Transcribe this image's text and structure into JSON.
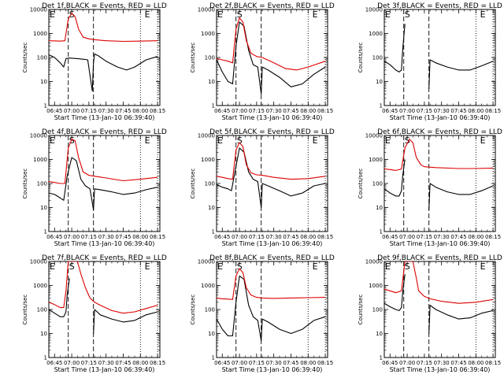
{
  "chart_data": [
    {
      "type": "line",
      "title": "Det 1f,BLACK = Events, RED = LLD",
      "xlabel": "Start Time (13-Jan-10 06:39:40)",
      "ylabel": "Counts/sec",
      "yscale": "log",
      "ylim": [
        1,
        10000
      ],
      "xlim": [
        "06:40",
        "08:17"
      ],
      "xticks": [
        "06:45",
        "07:00",
        "07:15",
        "07:30",
        "07:45",
        "08:00",
        "08:15"
      ],
      "yticks": [
        "1",
        "10",
        "100",
        "1000",
        "10000"
      ],
      "markers": [
        "E",
        "S",
        "E"
      ],
      "series": [
        {
          "name": "Events",
          "color": "#000000",
          "x": [
            "06:40",
            "06:45",
            "06:50",
            "06:53",
            "06:55",
            "06:58",
            "07:05",
            "07:10",
            "07:14",
            "07:18",
            "07:19",
            "07:20",
            "07:23",
            "07:30",
            "07:40",
            "07:48",
            "07:55",
            "08:05",
            "08:15"
          ],
          "y": [
            130,
            100,
            60,
            40,
            90,
            95,
            90,
            85,
            80,
            4,
            60,
            140,
            120,
            70,
            40,
            30,
            40,
            80,
            110
          ]
        },
        {
          "name": "LLD",
          "color": "#dd0000",
          "x": [
            "06:40",
            "06:50",
            "06:54",
            "06:57",
            "07:00",
            "07:03",
            "07:06",
            "07:10",
            "07:15",
            "07:20",
            "07:30",
            "07:45",
            "08:00",
            "08:15"
          ],
          "y": [
            500,
            480,
            500,
            4000,
            7000,
            5000,
            1500,
            700,
            600,
            550,
            500,
            470,
            480,
            500
          ]
        }
      ]
    },
    {
      "type": "line",
      "title": "Det 2f,BLACK = Events, RED = LLD",
      "xlabel": "Start Time (13-Jan-10 06:39:40)",
      "ylabel": "Counts/sec",
      "yscale": "log",
      "ylim": [
        1,
        10000
      ],
      "xlim": [
        "06:40",
        "08:17"
      ],
      "xticks": [
        "06:45",
        "07:00",
        "07:15",
        "07:30",
        "07:45",
        "08:00",
        "08:15"
      ],
      "yticks": [
        "1",
        "10",
        "100",
        "1000",
        "10000"
      ],
      "markers": [
        "E",
        "S",
        "E"
      ],
      "series": [
        {
          "name": "Events",
          "color": "#000000",
          "x": [
            "06:40",
            "06:45",
            "06:50",
            "06:54",
            "06:57",
            "07:00",
            "07:04",
            "07:08",
            "07:12",
            "07:16",
            "07:19",
            "07:20",
            "07:25",
            "07:35",
            "07:45",
            "07:55",
            "08:05",
            "08:15"
          ],
          "y": [
            80,
            25,
            10,
            8,
            300,
            3000,
            2000,
            200,
            50,
            40,
            3,
            40,
            30,
            15,
            6,
            8,
            20,
            40
          ]
        },
        {
          "name": "LLD",
          "color": "#dd0000",
          "x": [
            "06:40",
            "06:45",
            "06:50",
            "06:54",
            "06:57",
            "07:00",
            "07:03",
            "07:06",
            "07:10",
            "07:15",
            "07:20",
            "07:30",
            "07:40",
            "07:50",
            "08:00",
            "08:15"
          ],
          "y": [
            90,
            80,
            70,
            60,
            1500,
            4500,
            3000,
            500,
            150,
            110,
            100,
            60,
            35,
            30,
            40,
            70
          ]
        }
      ]
    },
    {
      "type": "line",
      "title": "Det 3f,BLACK = Events, RED = LLD",
      "xlabel": "Start Time (13-Jan-10 06:39:40)",
      "ylabel": "Counts/sec",
      "yscale": "log",
      "ylim": [
        1,
        10000
      ],
      "xlim": [
        "06:40",
        "08:17"
      ],
      "xticks": [
        "06:45",
        "07:00",
        "07:15",
        "07:30",
        "07:45",
        "08:00",
        "08:15"
      ],
      "yticks": [
        "1",
        "10",
        "100",
        "1000",
        "10000"
      ],
      "markers": [
        "E",
        "S",
        "E"
      ],
      "series": [
        {
          "name": "Events",
          "color": "#000000",
          "x": [
            "06:40",
            "06:45",
            "06:50",
            "06:53",
            "06:55",
            "06:56",
            "06:58"
          ],
          "y": [
            70,
            50,
            30,
            25,
            30,
            200,
            2500
          ]
        },
        {
          "name": "Events",
          "color": "#000000",
          "x": [
            "07:19",
            "07:20",
            "07:25",
            "07:35",
            "07:45",
            "07:55",
            "08:05",
            "08:15"
          ],
          "y": [
            5,
            80,
            60,
            40,
            30,
            30,
            45,
            70
          ]
        }
      ]
    },
    {
      "type": "line",
      "title": "Det 4f,BLACK = Events, RED = LLD",
      "xlabel": "Start Time (13-Jan-10 06:39:40)",
      "ylabel": "Counts/sec",
      "yscale": "log",
      "ylim": [
        1,
        10000
      ],
      "xlim": [
        "06:40",
        "08:17"
      ],
      "xticks": [
        "06:45",
        "07:00",
        "07:15",
        "07:30",
        "07:45",
        "08:00",
        "08:15"
      ],
      "yticks": [
        "1",
        "10",
        "100",
        "1000",
        "10000"
      ],
      "markers": [
        "E",
        "S",
        "E"
      ],
      "series": [
        {
          "name": "Events",
          "color": "#000000",
          "x": [
            "06:40",
            "06:45",
            "06:50",
            "06:53",
            "06:56",
            "07:00",
            "07:04",
            "07:08",
            "07:12",
            "07:16",
            "07:19",
            "07:20",
            "07:25",
            "07:35",
            "07:45",
            "07:55",
            "08:05",
            "08:15"
          ],
          "y": [
            40,
            35,
            25,
            20,
            200,
            1200,
            900,
            150,
            80,
            60,
            8,
            60,
            55,
            45,
            35,
            40,
            55,
            70
          ]
        },
        {
          "name": "LLD",
          "color": "#dd0000",
          "x": [
            "06:40",
            "06:45",
            "06:50",
            "06:54",
            "06:57",
            "07:00",
            "07:03",
            "07:06",
            "07:10",
            "07:15",
            "07:20",
            "07:30",
            "07:45",
            "08:00",
            "08:15"
          ],
          "y": [
            120,
            110,
            100,
            100,
            3000,
            7000,
            6000,
            1200,
            300,
            220,
            200,
            170,
            130,
            150,
            180
          ]
        }
      ]
    },
    {
      "type": "line",
      "title": "Det 5f,BLACK = Events, RED = LLD",
      "xlabel": "Start Time (13-Jan-10 06:39:40)",
      "ylabel": "Counts/sec",
      "yscale": "log",
      "ylim": [
        1,
        10000
      ],
      "xlim": [
        "06:40",
        "08:17"
      ],
      "xticks": [
        "06:45",
        "07:00",
        "07:15",
        "07:30",
        "07:45",
        "08:00",
        "08:15"
      ],
      "yticks": [
        "1",
        "10",
        "100",
        "1000",
        "10000"
      ],
      "markers": [
        "E",
        "S",
        "E"
      ],
      "series": [
        {
          "name": "Events",
          "color": "#000000",
          "x": [
            "06:40",
            "06:45",
            "06:50",
            "06:53",
            "06:56",
            "07:00",
            "07:04",
            "07:08",
            "07:12",
            "07:16",
            "07:19",
            "07:20",
            "07:25",
            "07:35",
            "07:45",
            "07:55",
            "08:05",
            "08:15"
          ],
          "y": [
            90,
            70,
            60,
            50,
            300,
            3000,
            2000,
            300,
            150,
            120,
            10,
            100,
            80,
            50,
            30,
            40,
            80,
            100
          ]
        },
        {
          "name": "LLD",
          "color": "#dd0000",
          "x": [
            "06:40",
            "06:45",
            "06:50",
            "06:54",
            "06:57",
            "07:00",
            "07:03",
            "07:06",
            "07:10",
            "07:15",
            "07:20",
            "07:30",
            "07:45",
            "08:00",
            "08:15"
          ],
          "y": [
            200,
            180,
            160,
            150,
            2500,
            5000,
            3500,
            600,
            280,
            230,
            220,
            180,
            150,
            160,
            200
          ]
        }
      ]
    },
    {
      "type": "line",
      "title": "Det 6f,BLACK = Events, RED = LLD",
      "xlabel": "Start Time (13-Jan-10 06:39:40)",
      "ylabel": "Counts/sec",
      "yscale": "log",
      "ylim": [
        1,
        10000
      ],
      "xlim": [
        "06:40",
        "08:17"
      ],
      "xticks": [
        "06:45",
        "07:00",
        "07:15",
        "07:30",
        "07:45",
        "08:00",
        "08:15"
      ],
      "yticks": [
        "1",
        "10",
        "100",
        "1000",
        "10000"
      ],
      "markers": [
        "E",
        "S",
        "E"
      ],
      "series": [
        {
          "name": "Events",
          "color": "#000000",
          "x": [
            "06:40",
            "06:45",
            "06:50",
            "06:53",
            "06:55",
            "06:56",
            "06:58"
          ],
          "y": [
            60,
            40,
            30,
            30,
            50,
            200,
            1000
          ]
        },
        {
          "name": "Events",
          "color": "#000000",
          "x": [
            "07:19",
            "07:20",
            "07:25",
            "07:35",
            "07:45",
            "07:55",
            "08:05",
            "08:15"
          ],
          "y": [
            8,
            100,
            70,
            45,
            35,
            35,
            50,
            80
          ]
        },
        {
          "name": "LLD",
          "color": "#dd0000",
          "x": [
            "06:40",
            "06:45",
            "06:50",
            "06:55",
            "06:58",
            "07:02",
            "07:05",
            "07:08",
            "07:12",
            "07:15",
            "07:25",
            "07:45",
            "08:00",
            "08:15"
          ],
          "y": [
            400,
            380,
            350,
            400,
            3000,
            7000,
            5000,
            1200,
            600,
            500,
            460,
            420,
            420,
            440
          ]
        }
      ]
    },
    {
      "type": "line",
      "title": "Det 7f,BLACK = Events, RED = LLD",
      "xlabel": "Start Time (13-Jan-10 06:39:40)",
      "ylabel": "Counts/sec",
      "yscale": "log",
      "ylim": [
        1,
        10000
      ],
      "xlim": [
        "06:40",
        "08:17"
      ],
      "xticks": [
        "06:45",
        "07:00",
        "07:15",
        "07:30",
        "07:45",
        "08:00",
        "08:15"
      ],
      "yticks": [
        "1",
        "10",
        "100",
        "1000",
        "10000"
      ],
      "markers": [
        "E",
        "S",
        "E"
      ],
      "series": [
        {
          "name": "Events",
          "color": "#000000",
          "x": [
            "06:40",
            "06:45",
            "06:50",
            "06:53",
            "06:55",
            "06:56",
            "06:58"
          ],
          "y": [
            100,
            70,
            50,
            50,
            80,
            400,
            2000
          ]
        },
        {
          "name": "Events",
          "color": "#000000",
          "x": [
            "07:19",
            "07:20",
            "07:25",
            "07:35",
            "07:45",
            "07:55",
            "08:05",
            "08:15"
          ],
          "y": [
            10,
            100,
            60,
            40,
            30,
            35,
            60,
            80
          ]
        },
        {
          "name": "LLD",
          "color": "#dd0000",
          "x": [
            "06:40",
            "06:45",
            "06:50",
            "06:53",
            "06:55",
            "06:57",
            "07:05",
            "07:08",
            "07:12",
            "07:16",
            "07:20",
            "07:25",
            "07:35",
            "07:45",
            "07:55",
            "08:05",
            "08:15"
          ],
          "y": [
            200,
            160,
            120,
            120,
            600,
            10000,
            10000,
            3000,
            800,
            300,
            200,
            150,
            90,
            70,
            80,
            110,
            150
          ]
        }
      ]
    },
    {
      "type": "line",
      "title": "Det 8f,BLACK = Events, RED = LLD",
      "xlabel": "Start Time (13-Jan-10 06:39:40)",
      "ylabel": "Counts/sec",
      "yscale": "log",
      "ylim": [
        1,
        10000
      ],
      "xlim": [
        "06:40",
        "08:17"
      ],
      "xticks": [
        "06:45",
        "07:00",
        "07:15",
        "07:30",
        "07:45",
        "08:00",
        "08:15"
      ],
      "yticks": [
        "1",
        "10",
        "100",
        "1000",
        "10000"
      ],
      "markers": [
        "E",
        "S",
        "E"
      ],
      "series": [
        {
          "name": "Events",
          "color": "#000000",
          "x": [
            "06:40",
            "06:45",
            "06:50",
            "06:54",
            "06:57",
            "07:00",
            "07:04",
            "07:08",
            "07:12",
            "07:16",
            "07:19",
            "07:20",
            "07:25",
            "07:35",
            "07:45",
            "07:55",
            "08:05",
            "08:15"
          ],
          "y": [
            40,
            15,
            8,
            8,
            200,
            2500,
            1800,
            150,
            50,
            35,
            5,
            40,
            30,
            15,
            10,
            15,
            35,
            50
          ]
        },
        {
          "name": "LLD",
          "color": "#dd0000",
          "x": [
            "06:40",
            "06:45",
            "06:50",
            "06:54",
            "06:57",
            "07:00",
            "07:03",
            "07:06",
            "07:10",
            "07:15",
            "07:20",
            "07:30",
            "07:45",
            "08:00",
            "08:15"
          ],
          "y": [
            300,
            280,
            270,
            260,
            2500,
            5000,
            3500,
            800,
            400,
            320,
            300,
            290,
            300,
            310,
            320
          ]
        }
      ]
    },
    {
      "type": "line",
      "title": "Det 9f,BLACK = Events, RED = LLD",
      "xlabel": "Start Time (13-Jan-10 06:39:40)",
      "ylabel": "Counts/sec",
      "yscale": "log",
      "ylim": [
        1,
        10000
      ],
      "xlim": [
        "06:40",
        "08:17"
      ],
      "xticks": [
        "06:45",
        "07:00",
        "07:15",
        "07:30",
        "07:45",
        "08:00",
        "08:15"
      ],
      "yticks": [
        "1",
        "10",
        "100",
        "1000",
        "10000"
      ],
      "markers": [
        "E",
        "S",
        "E"
      ],
      "series": [
        {
          "name": "Events",
          "color": "#000000",
          "x": [
            "06:40",
            "06:45",
            "06:50",
            "06:53",
            "06:55",
            "06:56",
            "06:58"
          ],
          "y": [
            180,
            130,
            100,
            90,
            120,
            500,
            3000
          ]
        },
        {
          "name": "Events",
          "color": "#000000",
          "x": [
            "07:19",
            "07:20",
            "07:25",
            "07:35",
            "07:45",
            "07:55",
            "08:05",
            "08:15"
          ],
          "y": [
            10,
            150,
            100,
            60,
            40,
            45,
            70,
            90
          ]
        },
        {
          "name": "LLD",
          "color": "#dd0000",
          "x": [
            "06:40",
            "06:45",
            "06:50",
            "06:55",
            "06:58",
            "07:05",
            "07:08",
            "07:10",
            "07:15",
            "07:20",
            "07:30",
            "07:45",
            "08:00",
            "08:15"
          ],
          "y": [
            700,
            600,
            500,
            600,
            10000,
            10000,
            2000,
            600,
            350,
            280,
            220,
            180,
            200,
            260
          ]
        }
      ]
    }
  ]
}
